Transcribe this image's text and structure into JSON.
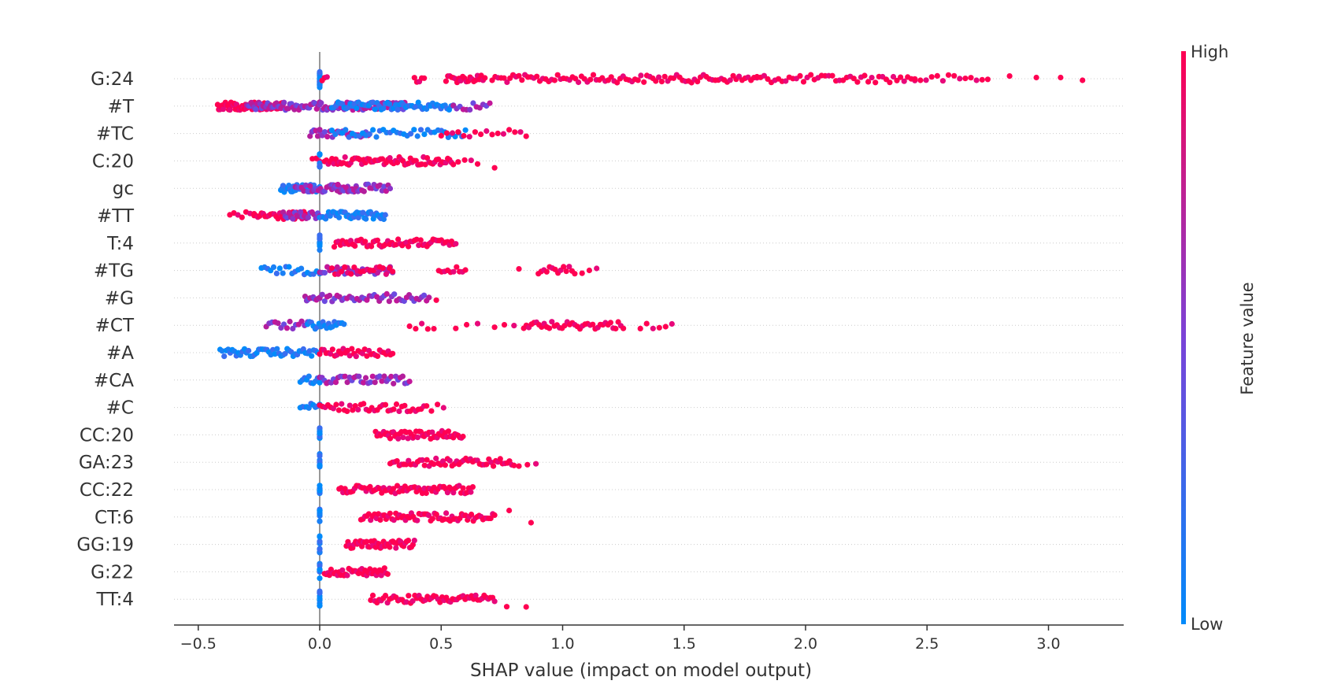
{
  "chart_data": {
    "type": "scatter",
    "subtype": "shap-beeswarm-summary",
    "xlabel": "SHAP value (impact on model output)",
    "xticks": [
      -0.5,
      0.0,
      0.5,
      1.0,
      1.5,
      2.0,
      2.5,
      3.0
    ],
    "xlim": [
      -0.6,
      3.32
    ],
    "colorbar": {
      "title": "Feature value",
      "high_label": "High",
      "low_label": "Low",
      "high_color": "#ff0052",
      "low_color": "#008bfb"
    },
    "gridlines": "dotted horizontal per feature",
    "features": [
      {
        "name": "G:24",
        "clusters": [
          [
            0.0,
            0.0,
            "low",
            22
          ],
          [
            0.01,
            0.03,
            "high",
            3
          ],
          [
            0.39,
            0.43,
            "high",
            5
          ],
          [
            0.52,
            0.68,
            "high",
            22
          ],
          [
            0.71,
            1.8,
            "high",
            90
          ],
          [
            1.8,
            2.45,
            "high",
            45
          ],
          [
            2.45,
            2.75,
            "high",
            14
          ],
          [
            2.84,
            2.84,
            "high",
            1
          ],
          [
            2.95,
            2.95,
            "high",
            1
          ],
          [
            3.05,
            3.05,
            "high",
            1
          ],
          [
            3.14,
            3.14,
            "high",
            1
          ]
        ]
      },
      {
        "name": "#T",
        "clusters": [
          [
            -0.42,
            -0.15,
            "high",
            60
          ],
          [
            -0.3,
            0.0,
            "mid",
            50
          ],
          [
            0.0,
            0.35,
            "mid",
            60
          ],
          [
            0.05,
            0.55,
            "low",
            60
          ],
          [
            0.55,
            0.7,
            "mid",
            12
          ]
        ]
      },
      {
        "name": "#TC",
        "clusters": [
          [
            -0.04,
            0.0,
            "mid",
            6
          ],
          [
            0.0,
            0.2,
            "mid",
            20
          ],
          [
            0.05,
            0.6,
            "low",
            40
          ],
          [
            0.5,
            0.85,
            "high",
            16
          ]
        ]
      },
      {
        "name": "C:20",
        "clusters": [
          [
            -0.03,
            0.0,
            "high",
            3
          ],
          [
            0.0,
            0.0,
            "low",
            10
          ],
          [
            0.02,
            0.55,
            "high",
            70
          ],
          [
            0.57,
            0.65,
            "high",
            4
          ],
          [
            0.72,
            0.72,
            "high",
            1
          ]
        ]
      },
      {
        "name": "gc",
        "clusters": [
          [
            -0.16,
            0.0,
            "low",
            35
          ],
          [
            -0.1,
            0.15,
            "mid",
            30
          ],
          [
            0.05,
            0.29,
            "mid",
            30
          ]
        ]
      },
      {
        "name": "#TT",
        "clusters": [
          [
            -0.37,
            -0.27,
            "high",
            7
          ],
          [
            -0.27,
            -0.05,
            "high",
            30
          ],
          [
            -0.15,
            0.0,
            "mid",
            20
          ],
          [
            0.0,
            0.27,
            "low",
            45
          ]
        ]
      },
      {
        "name": "T:4",
        "clusters": [
          [
            0.0,
            0.0,
            "low",
            10
          ],
          [
            0.06,
            0.56,
            "high",
            60
          ]
        ]
      },
      {
        "name": "#TG",
        "clusters": [
          [
            -0.24,
            0.0,
            "low",
            20
          ],
          [
            0.0,
            0.3,
            "mid",
            30
          ],
          [
            0.05,
            0.3,
            "high",
            20
          ],
          [
            0.49,
            0.6,
            "high",
            10
          ],
          [
            0.82,
            0.82,
            "high",
            1
          ],
          [
            0.9,
            1.05,
            "high",
            14
          ],
          [
            1.08,
            1.14,
            "high",
            3
          ]
        ]
      },
      {
        "name": "#G",
        "clusters": [
          [
            -0.06,
            0.0,
            "mid",
            10
          ],
          [
            0.0,
            0.45,
            "mid",
            45
          ],
          [
            0.48,
            0.48,
            "high",
            1
          ]
        ]
      },
      {
        "name": "#CT",
        "clusters": [
          [
            -0.22,
            -0.05,
            "mid",
            15
          ],
          [
            -0.05,
            0.1,
            "low",
            20
          ],
          [
            0.37,
            0.47,
            "high",
            5
          ],
          [
            0.56,
            0.65,
            "high",
            3
          ],
          [
            0.72,
            0.8,
            "high",
            3
          ],
          [
            0.84,
            1.25,
            "high",
            40
          ],
          [
            1.32,
            1.45,
            "high",
            6
          ]
        ]
      },
      {
        "name": "#A",
        "clusters": [
          [
            -0.41,
            0.0,
            "low",
            50
          ],
          [
            0.0,
            0.3,
            "high",
            35
          ]
        ]
      },
      {
        "name": "#CA",
        "clusters": [
          [
            -0.08,
            0.0,
            "low",
            10
          ],
          [
            0.0,
            0.37,
            "mid",
            40
          ]
        ]
      },
      {
        "name": "#C",
        "clusters": [
          [
            -0.08,
            0.0,
            "low",
            10
          ],
          [
            0.0,
            0.44,
            "high",
            40
          ],
          [
            0.46,
            0.51,
            "high",
            3
          ]
        ]
      },
      {
        "name": "CC:20",
        "clusters": [
          [
            0.0,
            0.0,
            "low",
            10
          ],
          [
            0.23,
            0.59,
            "high",
            55
          ]
        ]
      },
      {
        "name": "GA:23",
        "clusters": [
          [
            0.0,
            0.0,
            "low",
            10
          ],
          [
            0.29,
            0.8,
            "high",
            55
          ],
          [
            0.82,
            0.89,
            "high",
            3
          ]
        ]
      },
      {
        "name": "CC:22",
        "clusters": [
          [
            0.0,
            0.0,
            "low",
            10
          ],
          [
            0.08,
            0.63,
            "high",
            70
          ]
        ]
      },
      {
        "name": "CT:6",
        "clusters": [
          [
            0.0,
            0.0,
            "low",
            10
          ],
          [
            0.17,
            0.72,
            "high",
            70
          ],
          [
            0.78,
            0.78,
            "high",
            1
          ],
          [
            0.87,
            0.87,
            "high",
            1
          ]
        ]
      },
      {
        "name": "GG:19",
        "clusters": [
          [
            0.0,
            0.0,
            "low",
            10
          ],
          [
            0.11,
            0.39,
            "high",
            45
          ]
        ]
      },
      {
        "name": "G:22",
        "clusters": [
          [
            0.0,
            0.0,
            "low",
            10
          ],
          [
            0.02,
            0.28,
            "high",
            40
          ]
        ]
      },
      {
        "name": "TT:4",
        "clusters": [
          [
            0.0,
            0.0,
            "low",
            10
          ],
          [
            0.21,
            0.72,
            "high",
            60
          ],
          [
            0.77,
            0.77,
            "high",
            1
          ],
          [
            0.85,
            0.85,
            "high",
            1
          ]
        ]
      }
    ]
  }
}
